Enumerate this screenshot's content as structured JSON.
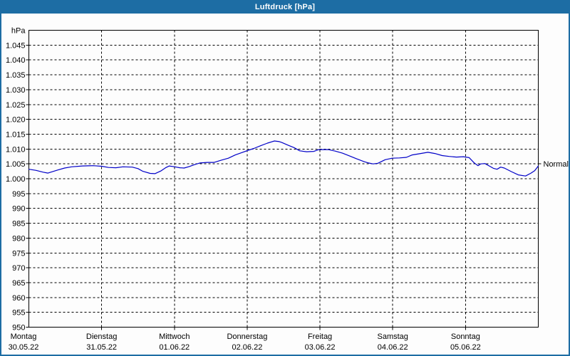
{
  "window": {
    "title": "Luftdruck [hPa]"
  },
  "colors": {
    "titlebar": "#1d6da4",
    "window_border": "#1d6da4",
    "plot_border": "#000000",
    "grid": "#000000",
    "line": "#0000c8",
    "background": "#fdfdfd",
    "title_text": "#ffffff",
    "label_text": "#000000"
  },
  "chart_data": {
    "type": "line",
    "title": "Luftdruck [hPa]",
    "unit_label": "hPa",
    "grid": true,
    "legend_position": "none",
    "y_axis": {
      "min": 950,
      "max": 1050,
      "tick_step": 5,
      "tick_label_min": 950,
      "tick_label_max": 1045,
      "tick_labels": [
        "1.045",
        "1.040",
        "1.035",
        "1.030",
        "1.025",
        "1.020",
        "1.015",
        "1.010",
        "1.005",
        "1.000",
        "995",
        "990",
        "985",
        "980",
        "975",
        "970",
        "965",
        "960",
        "955",
        "950"
      ]
    },
    "x_axis": {
      "hours_total": 168,
      "days": [
        {
          "name": "Montag",
          "date": "30.05.22"
        },
        {
          "name": "Dienstag",
          "date": "31.05.22"
        },
        {
          "name": "Mittwoch",
          "date": "01.06.22"
        },
        {
          "name": "Donnerstag",
          "date": "02.06.22"
        },
        {
          "name": "Freitag",
          "date": "03.06.22"
        },
        {
          "name": "Samstag",
          "date": "04.06.22"
        },
        {
          "name": "Sonntag",
          "date": "05.06.22"
        }
      ]
    },
    "normal_marker": {
      "label": "Normal",
      "value": 1005
    },
    "series": [
      {
        "name": "Luftdruck",
        "unit": "hPa",
        "points": [
          [
            0,
            1003.2
          ],
          [
            2.4,
            1002.8
          ],
          [
            4.7,
            1002.2
          ],
          [
            6.3,
            1001.9
          ],
          [
            9.4,
            1002.9
          ],
          [
            11.8,
            1003.6
          ],
          [
            14.1,
            1004.0
          ],
          [
            17.6,
            1004.3
          ],
          [
            21.2,
            1004.4
          ],
          [
            24,
            1004.2
          ],
          [
            26.3,
            1003.8
          ],
          [
            28.7,
            1003.7
          ],
          [
            31,
            1004.0
          ],
          [
            34.1,
            1003.9
          ],
          [
            36,
            1003.4
          ],
          [
            37.6,
            1002.5
          ],
          [
            40,
            1001.8
          ],
          [
            41.6,
            1001.7
          ],
          [
            43.5,
            1002.6
          ],
          [
            45.1,
            1003.7
          ],
          [
            46.3,
            1004.3
          ],
          [
            48.2,
            1004.0
          ],
          [
            49.8,
            1003.7
          ],
          [
            51.2,
            1003.6
          ],
          [
            52.9,
            1004.1
          ],
          [
            54.5,
            1004.7
          ],
          [
            56.4,
            1005.3
          ],
          [
            58.8,
            1005.5
          ],
          [
            61.1,
            1005.5
          ],
          [
            63.4,
            1006.2
          ],
          [
            65.8,
            1006.9
          ],
          [
            68.1,
            1008.0
          ],
          [
            70.5,
            1008.9
          ],
          [
            72.4,
            1009.6
          ],
          [
            74.2,
            1010.2
          ],
          [
            76.4,
            1011.1
          ],
          [
            78.7,
            1012.0
          ],
          [
            81,
            1012.7
          ],
          [
            82.6,
            1012.5
          ],
          [
            83.4,
            1012.2
          ],
          [
            85.7,
            1011.2
          ],
          [
            87.6,
            1010.4
          ],
          [
            89.3,
            1009.4
          ],
          [
            91.6,
            1009.1
          ],
          [
            94,
            1009.2
          ],
          [
            95.6,
            1009.8
          ],
          [
            98.7,
            1009.8
          ],
          [
            101,
            1009.3
          ],
          [
            103.4,
            1008.6
          ],
          [
            105.7,
            1007.7
          ],
          [
            108.1,
            1006.7
          ],
          [
            110.4,
            1005.8
          ],
          [
            112,
            1005.3
          ],
          [
            113.5,
            1005.0
          ],
          [
            115.1,
            1005.2
          ],
          [
            117.5,
            1006.4
          ],
          [
            119.8,
            1006.9
          ],
          [
            122.2,
            1007.0
          ],
          [
            124.5,
            1007.2
          ],
          [
            126.4,
            1008.0
          ],
          [
            129.2,
            1008.5
          ],
          [
            131.6,
            1008.9
          ],
          [
            133.9,
            1008.5
          ],
          [
            136.3,
            1007.8
          ],
          [
            138.6,
            1007.5
          ],
          [
            141,
            1007.3
          ],
          [
            143.3,
            1007.4
          ],
          [
            145.2,
            1007.1
          ],
          [
            146.9,
            1005.3
          ],
          [
            148.1,
            1004.4
          ],
          [
            149,
            1005.0
          ],
          [
            150.4,
            1005.1
          ],
          [
            152,
            1004.2
          ],
          [
            153.2,
            1003.5
          ],
          [
            154.4,
            1003.2
          ],
          [
            155.6,
            1003.9
          ],
          [
            156.8,
            1003.6
          ],
          [
            159.1,
            1002.4
          ],
          [
            161.4,
            1001.3
          ],
          [
            163.8,
            1000.9
          ],
          [
            165.6,
            1001.9
          ],
          [
            166.8,
            1002.7
          ],
          [
            168,
            1004.3
          ]
        ]
      }
    ]
  }
}
